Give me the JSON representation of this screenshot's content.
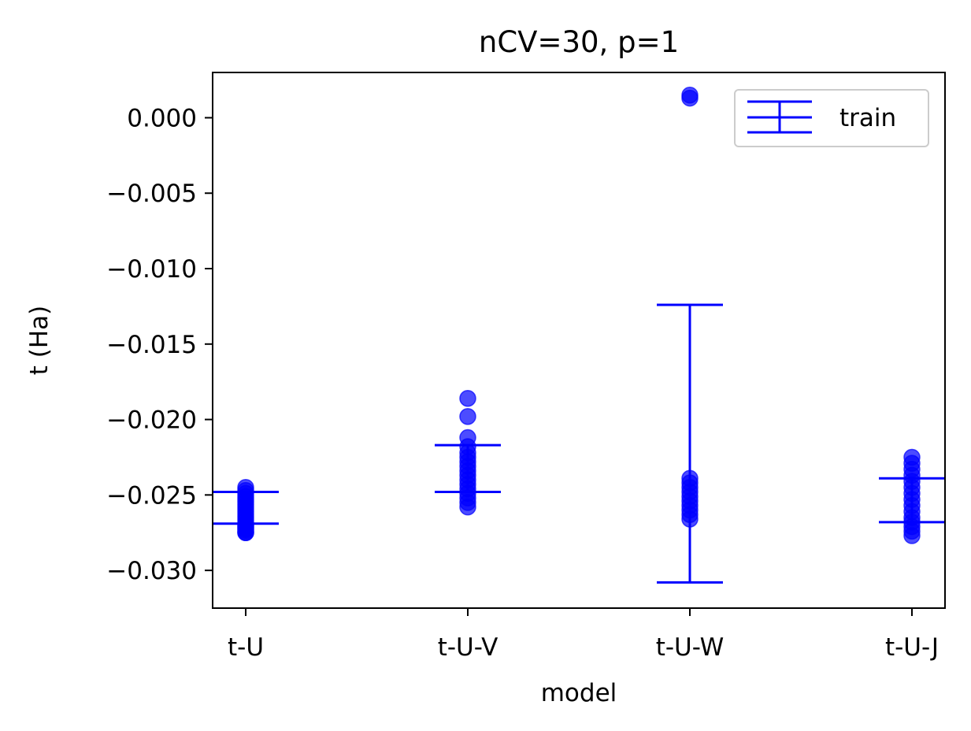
{
  "chart_data": {
    "type": "scatter",
    "title": "nCV=30, p=1",
    "xlabel": "model",
    "ylabel": "t (Ha)",
    "categories": [
      "t-U",
      "t-U-V",
      "t-U-W",
      "t-U-J"
    ],
    "ylim": [
      -0.0325,
      0.003
    ],
    "yticks": [
      0.0,
      -0.005,
      -0.01,
      -0.015,
      -0.02,
      -0.025,
      -0.03
    ],
    "ytick_labels": [
      "0.000",
      "−0.005",
      "−0.010",
      "−0.015",
      "−0.020",
      "−0.025",
      "−0.030"
    ],
    "grid": false,
    "legend": {
      "position": "top-right",
      "entries": [
        "train"
      ]
    },
    "colors": {
      "series": "#0000ff",
      "frame": "#000000",
      "legend_border": "#cccccc"
    },
    "points": [
      {
        "category": "t-U",
        "values": [
          -0.0245,
          -0.0247,
          -0.0249,
          -0.0251,
          -0.0253,
          -0.0255,
          -0.0257,
          -0.0259,
          -0.0261,
          -0.0263,
          -0.0265,
          -0.0267,
          -0.0269,
          -0.027,
          -0.0271,
          -0.0272,
          -0.0273,
          -0.0274,
          -0.0275,
          -0.0275
        ]
      },
      {
        "category": "t-U-V",
        "values": [
          -0.0186,
          -0.0198,
          -0.0212,
          -0.0218,
          -0.0222,
          -0.0225,
          -0.0228,
          -0.0231,
          -0.0234,
          -0.0237,
          -0.024,
          -0.0243,
          -0.0246,
          -0.0249,
          -0.0252,
          -0.0255,
          -0.0258
        ]
      },
      {
        "category": "t-U-W",
        "values": [
          0.0015,
          0.0013,
          -0.0239,
          -0.0242,
          -0.0245,
          -0.0248,
          -0.0251,
          -0.0254,
          -0.0257,
          -0.026,
          -0.0263,
          -0.0266
        ]
      },
      {
        "category": "t-U-J",
        "values": [
          -0.0225,
          -0.0229,
          -0.0233,
          -0.0237,
          -0.0241,
          -0.0245,
          -0.0249,
          -0.0253,
          -0.0257,
          -0.0261,
          -0.0265,
          -0.0268,
          -0.0271,
          -0.0274,
          -0.0277
        ]
      }
    ],
    "errorbars": [
      {
        "category": "t-U",
        "upper": -0.0248,
        "lower": -0.0269
      },
      {
        "category": "t-U-V",
        "upper": -0.0217,
        "lower": -0.0248
      },
      {
        "category": "t-U-W",
        "upper": -0.0124,
        "lower": -0.0308
      },
      {
        "category": "t-U-J",
        "upper": -0.0239,
        "lower": -0.0268
      }
    ]
  }
}
